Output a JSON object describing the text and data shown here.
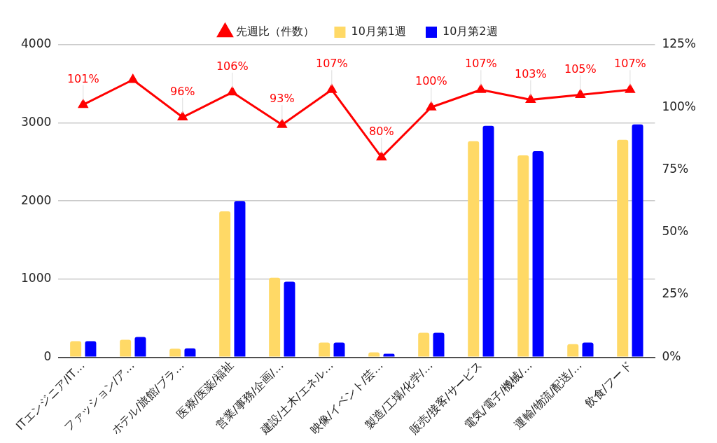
{
  "chart_data": {
    "type": "bar",
    "categories": [
      "ITエンジニア/IT…",
      "ファッション/ア…",
      "ホテル/旅館/ブラ…",
      "医療/医薬/福祉",
      "営業/事務/企画/…",
      "建設/土木/エネル…",
      "映像/イベント/芸…",
      "製造/工場/化学/…",
      "販売/接客/サービス",
      "電気/電子/機械/…",
      "運輸/物流/配送/…",
      "飲食/フード"
    ],
    "series": [
      {
        "name": "10月第1週",
        "color": "#ffd966",
        "values": [
          205,
          223,
          109,
          1867,
          1018,
          187,
          60,
          311,
          2765,
          2585,
          166,
          2783
        ]
      },
      {
        "name": "10月第2週",
        "color": "#0000ff",
        "values": [
          205,
          258,
          112,
          1998,
          965,
          187,
          42,
          311,
          2963,
          2638,
          187,
          2981
        ]
      },
      {
        "name": "先週比（件数）",
        "type": "line",
        "axis": "y2",
        "color": "#ff0000",
        "marker": "triangle",
        "values": [
          101,
          111,
          96,
          106,
          93,
          107,
          80,
          100,
          107,
          103,
          105,
          107
        ],
        "value_labels": [
          "101%",
          null,
          "96%",
          "106%",
          "93%",
          "107%",
          "80%",
          "100%",
          "107%",
          "103%",
          "105%",
          "107%"
        ]
      }
    ],
    "ylim": [
      0,
      4000
    ],
    "yticks": [
      0,
      1000,
      2000,
      3000,
      4000
    ],
    "y2lim": [
      0,
      125
    ],
    "y2ticks": [
      {
        "value": 0,
        "label": "0%"
      },
      {
        "value": 25,
        "label": "25%"
      },
      {
        "value": 50,
        "label": "50%"
      },
      {
        "value": 75,
        "label": "75%"
      },
      {
        "value": 100,
        "label": "100%"
      },
      {
        "value": 125,
        "label": "125%"
      }
    ],
    "grid": "y",
    "legend": "top"
  }
}
